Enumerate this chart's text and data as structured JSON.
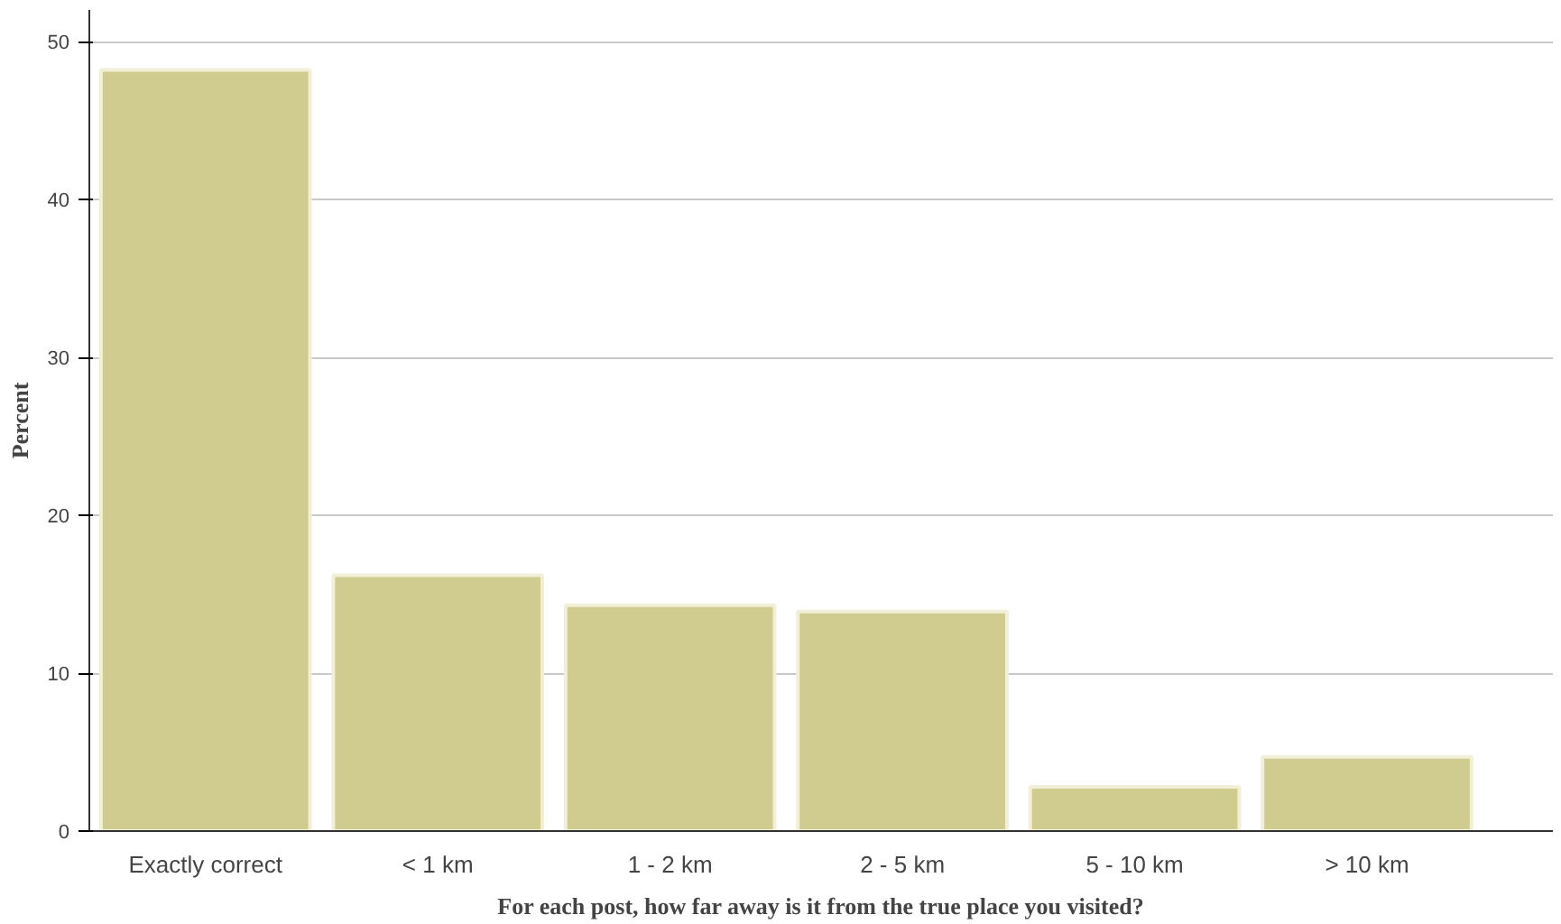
{
  "chart_data": {
    "type": "bar",
    "xlabel": "For each post, how far away is it from the true place you visited?",
    "ylabel": "Percent",
    "categories": [
      "Exactly correct",
      "< 1 km",
      "1 - 2 km",
      "2 - 5 km",
      "5 - 10 km",
      "> 10 km"
    ],
    "values": [
      48.2,
      16.2,
      14.3,
      13.9,
      2.8,
      4.7
    ],
    "color": "#d0cb8f",
    "ylim": [
      0,
      52
    ],
    "yticks": [
      0,
      10,
      20,
      30,
      40,
      50
    ],
    "grid": "y"
  }
}
